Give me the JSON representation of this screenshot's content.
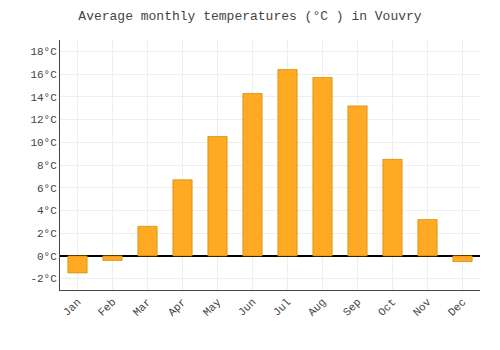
{
  "chart_data": {
    "type": "bar",
    "title": "Average monthly temperatures (°C ) in Vouvry",
    "categories": [
      "Jan",
      "Feb",
      "Mar",
      "Apr",
      "May",
      "Jun",
      "Jul",
      "Aug",
      "Sep",
      "Oct",
      "Nov",
      "Dec"
    ],
    "values": [
      -1.5,
      -0.4,
      2.6,
      6.7,
      10.5,
      14.3,
      16.4,
      15.7,
      13.2,
      8.5,
      3.2,
      -0.5
    ],
    "color": "#FFAA22",
    "ylim": [
      -3,
      19
    ],
    "yticks": [
      {
        "value": -2,
        "label": "-2°C"
      },
      {
        "value": 0,
        "label": "0°C"
      },
      {
        "value": 2,
        "label": "2°C"
      },
      {
        "value": 4,
        "label": "4°C"
      },
      {
        "value": 6,
        "label": "6°C"
      },
      {
        "value": 8,
        "label": "8°C"
      },
      {
        "value": 10,
        "label": "10°C"
      },
      {
        "value": 12,
        "label": "12°C"
      },
      {
        "value": 14,
        "label": "14°C"
      },
      {
        "value": 16,
        "label": "16°C"
      },
      {
        "value": 18,
        "label": "18°C"
      }
    ],
    "grid": true
  }
}
